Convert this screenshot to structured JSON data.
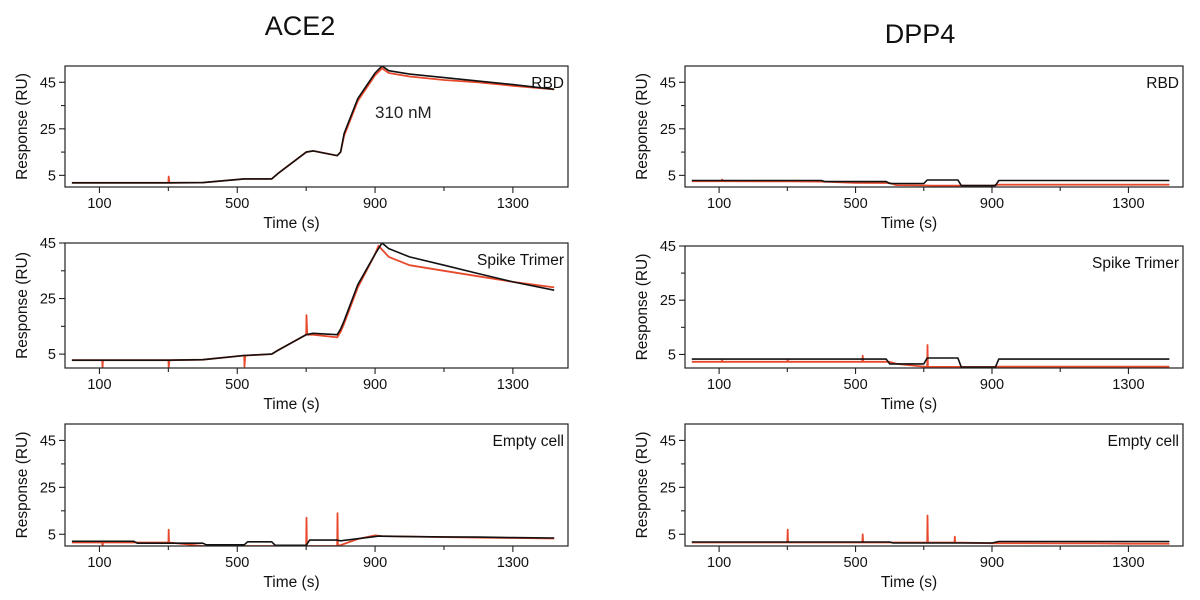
{
  "figure": {
    "columns": [
      {
        "title": "ACE2",
        "accent": "#111111"
      },
      {
        "title": "DPP4",
        "accent": "#111111"
      }
    ],
    "colors": {
      "measured": "#e8492c",
      "fit": "#111111"
    }
  },
  "chart_data": [
    {
      "type": "line",
      "column": "ACE2",
      "panel_label": "RBD",
      "annotation": "310 nM",
      "xlabel": "Time (s)",
      "ylabel": "Response (RU)",
      "xlim": [
        0,
        1460
      ],
      "ylim": [
        0,
        52
      ],
      "xticks": [
        100,
        500,
        900,
        1300
      ],
      "yticks": [
        5,
        25,
        45
      ],
      "series": [
        {
          "color": "#e8492c",
          "x": [
            20,
            300,
            301,
            303,
            305,
            400,
            520,
            600,
            620,
            700,
            720,
            790,
            800,
            810,
            850,
            900,
            920,
            940,
            1000,
            1100,
            1200,
            1300,
            1420
          ],
          "y": [
            1.8,
            1.8,
            4.5,
            1.8,
            1.8,
            1.9,
            3.5,
            3.5,
            6,
            15,
            15.5,
            13.5,
            15,
            22,
            37,
            48,
            51,
            49,
            47.5,
            46,
            45,
            43.5,
            42
          ]
        },
        {
          "color": "#111111",
          "x": [
            20,
            300,
            400,
            520,
            600,
            620,
            700,
            720,
            790,
            800,
            810,
            850,
            900,
            920,
            940,
            1000,
            1100,
            1200,
            1300,
            1420
          ],
          "y": [
            1.8,
            1.8,
            1.9,
            3.5,
            3.5,
            6,
            15,
            15.5,
            13.5,
            15,
            23,
            38,
            49,
            52,
            50,
            48.5,
            47,
            45.5,
            44,
            42
          ]
        }
      ]
    },
    {
      "type": "line",
      "column": "DPP4",
      "panel_label": "RBD",
      "xlabel": "Time (s)",
      "ylabel": "Response (RU)",
      "xlim": [
        0,
        1460
      ],
      "ylim": [
        0,
        52
      ],
      "xticks": [
        100,
        500,
        900,
        1300
      ],
      "yticks": [
        5,
        25,
        45
      ],
      "series": [
        {
          "color": "#e8492c",
          "x": [
            20,
            108,
            109,
            110,
            111,
            300,
            400,
            500,
            600,
            620,
            700,
            720,
            800,
            820,
            900,
            920,
            1000,
            1100,
            1200,
            1300,
            1420
          ],
          "y": [
            2.5,
            2.5,
            3.2,
            2.5,
            2.5,
            2.4,
            2.3,
            1.8,
            1.7,
            0.8,
            0.7,
            0.6,
            0.6,
            0.6,
            0.6,
            1,
            1,
            1,
            1,
            1,
            1
          ]
        },
        {
          "color": "#111111",
          "x": [
            20,
            400,
            410,
            500,
            590,
            600,
            700,
            710,
            800,
            810,
            900,
            910,
            920,
            1420
          ],
          "y": [
            2.8,
            2.8,
            2.3,
            2.3,
            2.3,
            1.5,
            1.5,
            3,
            3,
            0.6,
            0.6,
            0.6,
            2.8,
            2.8
          ]
        }
      ]
    },
    {
      "type": "line",
      "column": "ACE2",
      "panel_label": "Spike Trimer",
      "xlabel": "Time (s)",
      "ylabel": "Response (RU)",
      "xlim": [
        0,
        1460
      ],
      "ylim": [
        0,
        45
      ],
      "xticks": [
        100,
        500,
        900,
        1300
      ],
      "yticks": [
        5,
        25,
        45
      ],
      "series": [
        {
          "color": "#e8492c",
          "x": [
            20,
            108,
            109,
            110,
            111,
            300,
            301,
            303,
            305,
            400,
            520,
            521,
            523,
            525,
            600,
            620,
            700,
            701,
            703,
            705,
            720,
            790,
            800,
            810,
            850,
            900,
            910,
            940,
            1000,
            1100,
            1200,
            1300,
            1420
          ],
          "y": [
            2.8,
            2.8,
            0.3,
            2.8,
            2.8,
            2.8,
            0.3,
            2.8,
            2.8,
            3,
            4.5,
            0.5,
            4.5,
            4.5,
            5,
            6.5,
            12,
            19,
            12,
            12,
            12,
            11,
            13,
            16,
            29,
            41,
            44,
            40,
            37,
            35,
            33,
            31,
            29
          ]
        },
        {
          "color": "#111111",
          "x": [
            20,
            300,
            400,
            520,
            600,
            620,
            700,
            720,
            790,
            800,
            810,
            850,
            900,
            920,
            940,
            1000,
            1100,
            1200,
            1300,
            1420
          ],
          "y": [
            2.8,
            2.8,
            3,
            4.5,
            5,
            6.5,
            12,
            12.5,
            12,
            14,
            17,
            30,
            41,
            45,
            43,
            40,
            37,
            34,
            31,
            28
          ]
        }
      ]
    },
    {
      "type": "line",
      "column": "DPP4",
      "panel_label": "Spike Trimer",
      "xlabel": "Time (s)",
      "ylabel": "Response (RU)",
      "xlim": [
        0,
        1460
      ],
      "ylim": [
        0,
        45
      ],
      "xticks": [
        100,
        500,
        900,
        1300
      ],
      "yticks": [
        5,
        25,
        45
      ],
      "series": [
        {
          "color": "#e8492c",
          "x": [
            20,
            108,
            109,
            110,
            111,
            300,
            301,
            302,
            303,
            500,
            520,
            521,
            522,
            523,
            600,
            620,
            700,
            710,
            711,
            712,
            713,
            720,
            800,
            900,
            920,
            1000,
            1100,
            1200,
            1300,
            1420
          ],
          "y": [
            2.3,
            2.3,
            2.8,
            2.3,
            2.3,
            2.3,
            3.3,
            2.3,
            2.3,
            2.3,
            2.3,
            4.5,
            2.3,
            2.3,
            2.3,
            1.5,
            0.5,
            0.4,
            8.5,
            0.4,
            0.4,
            0.4,
            0.4,
            0.4,
            0.5,
            0.5,
            0.5,
            0.5,
            0.5,
            0.5
          ]
        },
        {
          "color": "#111111",
          "x": [
            20,
            590,
            600,
            700,
            710,
            800,
            810,
            900,
            910,
            920,
            1420
          ],
          "y": [
            3.3,
            3.3,
            1.5,
            1.5,
            3.7,
            3.7,
            0.3,
            0.3,
            0.3,
            3.3,
            3.3
          ]
        }
      ]
    },
    {
      "type": "line",
      "column": "ACE2",
      "panel_label": "Empty cell",
      "xlabel": "Time (s)",
      "ylabel": "Response (RU)",
      "xlim": [
        0,
        1460
      ],
      "ylim": [
        0,
        52
      ],
      "xticks": [
        100,
        500,
        900,
        1300
      ],
      "yticks": [
        5,
        25,
        45
      ],
      "series": [
        {
          "color": "#e8492c",
          "x": [
            20,
            108,
            109,
            110,
            111,
            300,
            301,
            302,
            303,
            400,
            520,
            600,
            700,
            701,
            702,
            703,
            790,
            791,
            792,
            793,
            850,
            900,
            920,
            1000,
            1100,
            1200,
            1300,
            1420
          ],
          "y": [
            1.5,
            1.5,
            -1,
            1.5,
            1.5,
            1.5,
            7,
            1.5,
            1.5,
            0,
            0,
            0,
            0,
            12,
            0,
            0,
            0,
            14,
            0,
            0,
            3,
            4.5,
            4.2,
            4,
            3.8,
            3.6,
            3.4,
            3.2
          ]
        },
        {
          "color": "#111111",
          "x": [
            20,
            200,
            210,
            300,
            400,
            410,
            520,
            530,
            600,
            610,
            700,
            710,
            790,
            800,
            900,
            910,
            1000,
            1100,
            1200,
            1300,
            1420
          ],
          "y": [
            2,
            2,
            1.2,
            1.2,
            1.2,
            0.5,
            0.5,
            1.8,
            1.8,
            0.3,
            0.3,
            2.5,
            2.5,
            2.2,
            4,
            4.2,
            4,
            3.9,
            3.8,
            3.6,
            3.4
          ]
        }
      ]
    },
    {
      "type": "line",
      "column": "DPP4",
      "panel_label": "Empty cell",
      "xlabel": "Time (s)",
      "ylabel": "Response (RU)",
      "xlim": [
        0,
        1460
      ],
      "ylim": [
        0,
        52
      ],
      "xticks": [
        100,
        500,
        900,
        1300
      ],
      "yticks": [
        5,
        25,
        45
      ],
      "series": [
        {
          "color": "#e8492c",
          "x": [
            20,
            300,
            301,
            302,
            303,
            520,
            521,
            522,
            523,
            700,
            710,
            711,
            712,
            713,
            790,
            791,
            792,
            793,
            900,
            920,
            1000,
            1100,
            1200,
            1300,
            1420
          ],
          "y": [
            1.5,
            1.5,
            7,
            1.5,
            1.5,
            1.5,
            5,
            1.5,
            1.5,
            1.5,
            1.5,
            13,
            1.5,
            1.5,
            1.5,
            4,
            1.5,
            1.5,
            1.2,
            1.2,
            1.2,
            1.1,
            1.1,
            1,
            1
          ]
        },
        {
          "color": "#111111",
          "x": [
            20,
            600,
            610,
            900,
            920,
            1420
          ],
          "y": [
            1.7,
            1.7,
            1.3,
            1.3,
            1.9,
            1.9
          ]
        }
      ]
    }
  ]
}
